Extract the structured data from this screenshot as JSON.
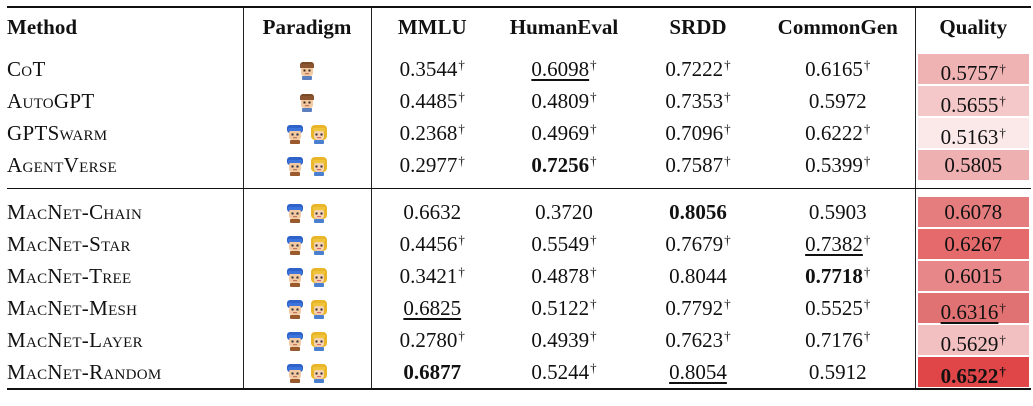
{
  "headers": {
    "method": "Method",
    "paradigm": "Paradigm",
    "mmlu": "MMLU",
    "humaneval": "HumanEval",
    "srdd": "SRDD",
    "commongen": "CommonGen",
    "quality": "Quality"
  },
  "dagger": "†",
  "colors": {
    "q_5757": "#efb3b4",
    "q_5655": "#f4c7c8",
    "q_5163": "#fbe8e8",
    "q_5805": "#efb0b1",
    "q_6078": "#e57c7e",
    "q_6267": "#e46a6c",
    "q_6015": "#e88789",
    "q_6316": "#e17274",
    "q_5629": "#f2c0c1",
    "q_6522": "#e04548"
  },
  "group1": [
    {
      "method": "CoT",
      "paradigm": "single-agent-icon",
      "mmlu": "0.3544",
      "humaneval": "0.6098",
      "srdd": "0.7222",
      "commongen": "0.6165",
      "quality": "0.5757"
    },
    {
      "method": "AutoGPT",
      "paradigm": "single-agent-icon",
      "mmlu": "0.4485",
      "humaneval": "0.4809",
      "srdd": "0.7353",
      "commongen": "0.5972",
      "quality": "0.5655"
    },
    {
      "method": "GPTSwarm",
      "paradigm": "multi-agent-icon",
      "mmlu": "0.2368",
      "humaneval": "0.4969",
      "srdd": "0.7096",
      "commongen": "0.6222",
      "quality": "0.5163"
    },
    {
      "method": "AgentVerse",
      "paradigm": "multi-agent-icon",
      "mmlu": "0.2977",
      "humaneval": "0.7256",
      "srdd": "0.7587",
      "commongen": "0.5399",
      "quality": "0.5805"
    }
  ],
  "group2": [
    {
      "method": "MacNet-Chain",
      "paradigm": "multi-agent-icon",
      "mmlu": "0.6632",
      "humaneval": "0.3720",
      "srdd": "0.8056",
      "commongen": "0.5903",
      "quality": "0.6078"
    },
    {
      "method": "MacNet-Star",
      "paradigm": "multi-agent-icon",
      "mmlu": "0.4456",
      "humaneval": "0.5549",
      "srdd": "0.7679",
      "commongen": "0.7382",
      "quality": "0.6267"
    },
    {
      "method": "MacNet-Tree",
      "paradigm": "multi-agent-icon",
      "mmlu": "0.3421",
      "humaneval": "0.4878",
      "srdd": "0.8044",
      "commongen": "0.7718",
      "quality": "0.6015"
    },
    {
      "method": "MacNet-Mesh",
      "paradigm": "multi-agent-icon",
      "mmlu": "0.6825",
      "humaneval": "0.5122",
      "srdd": "0.7792",
      "commongen": "0.5525",
      "quality": "0.6316"
    },
    {
      "method": "MacNet-Layer",
      "paradigm": "multi-agent-icon",
      "mmlu": "0.2780",
      "humaneval": "0.4939",
      "srdd": "0.7623",
      "commongen": "0.7176",
      "quality": "0.5629"
    },
    {
      "method": "MacNet-Random",
      "paradigm": "multi-agent-icon",
      "mmlu": "0.6877",
      "humaneval": "0.5244",
      "srdd": "0.8054",
      "commongen": "0.5912",
      "quality": "0.6522"
    }
  ]
}
